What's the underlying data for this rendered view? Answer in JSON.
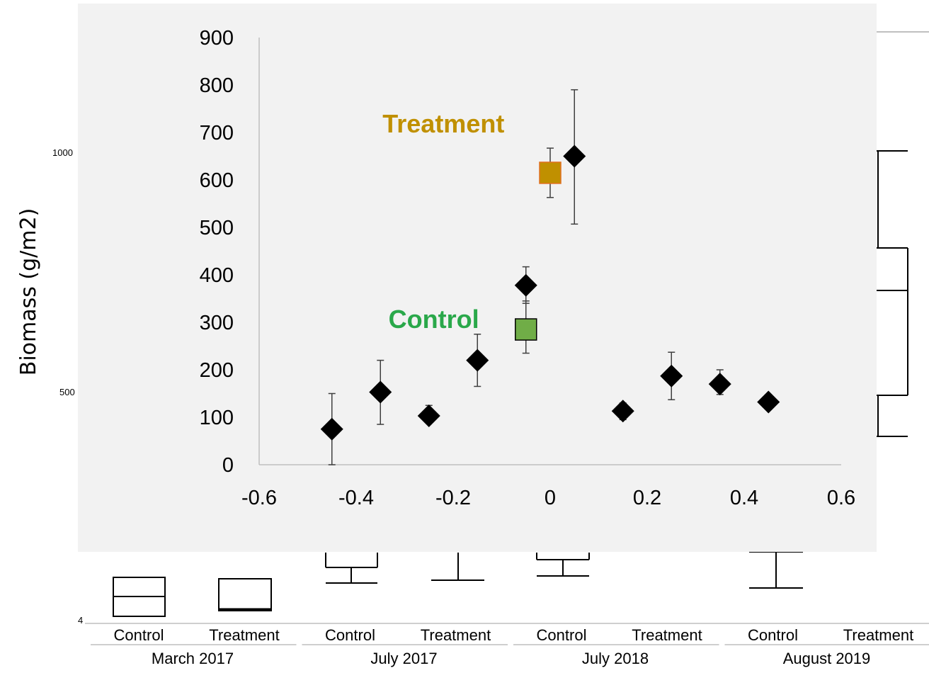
{
  "chart_data": [
    {
      "type": "scatter",
      "title": "",
      "xlabel": "",
      "ylabel": "",
      "xlim": [
        -0.6,
        0.6
      ],
      "ylim": [
        0,
        900
      ],
      "x_ticks": [
        "-0.6",
        "-0.4",
        "-0.2",
        "0",
        "0.2",
        "0.4",
        "0.6"
      ],
      "y_ticks": [
        "0",
        "100",
        "200",
        "300",
        "400",
        "500",
        "600",
        "700",
        "800",
        "900"
      ],
      "grid": false,
      "colors": {
        "marker": "#000000",
        "treatment": "#c09000",
        "control": "#2aa84a",
        "plot_bg": "#f2f2f2"
      },
      "series": [
        {
          "marker": "diamond",
          "points": [
            {
              "x": -0.45,
              "y": 75,
              "err_low": 0,
              "err_high": 150
            },
            {
              "x": -0.35,
              "y": 153,
              "err_low": 85,
              "err_high": 220
            },
            {
              "x": -0.25,
              "y": 103,
              "err_low": 90,
              "err_high": 125
            },
            {
              "x": -0.15,
              "y": 220,
              "err_low": 165,
              "err_high": 275
            },
            {
              "x": -0.05,
              "y": 378,
              "err_low": 340,
              "err_high": 417
            },
            {
              "x": 0.05,
              "y": 650,
              "err_low": 507,
              "err_high": 790
            },
            {
              "x": 0.15,
              "y": 113,
              "err_low": 95,
              "err_high": 130
            },
            {
              "x": 0.25,
              "y": 187,
              "err_low": 137,
              "err_high": 237
            },
            {
              "x": 0.35,
              "y": 170,
              "err_low": 148,
              "err_high": 200
            },
            {
              "x": 0.45,
              "y": 132,
              "err_low": 132,
              "err_high": 132
            }
          ]
        },
        {
          "marker": "square",
          "color": "#c09000",
          "points": [
            {
              "x": 0,
              "y": 615,
              "err_low": 563,
              "err_high": 667
            }
          ]
        },
        {
          "marker": "square",
          "color": "#70ad47",
          "points": [
            {
              "x": -0.05,
              "y": 285,
              "err_low": 235,
              "err_high": 345
            }
          ]
        }
      ],
      "annotations": [
        {
          "text": "Treatment",
          "x": -0.22,
          "y": 700,
          "color": "#c09000"
        },
        {
          "text": "Control",
          "x": -0.24,
          "y": 288,
          "color": "#2aa84a"
        }
      ]
    },
    {
      "type": "box",
      "ylabel": "Biomass (g/m2)",
      "visible_y_ticks": [
        "1000",
        "500",
        "4"
      ],
      "groups": [
        {
          "label": "March 2017",
          "categories": [
            "Control",
            "Treatment"
          ]
        },
        {
          "label": "July 2017",
          "categories": [
            "Control",
            "Treatment"
          ]
        },
        {
          "label": "July 2018",
          "categories": [
            "Control",
            "Treatment"
          ]
        },
        {
          "label": "August 2019",
          "categories": [
            "Control",
            "Treatment"
          ]
        }
      ]
    }
  ]
}
